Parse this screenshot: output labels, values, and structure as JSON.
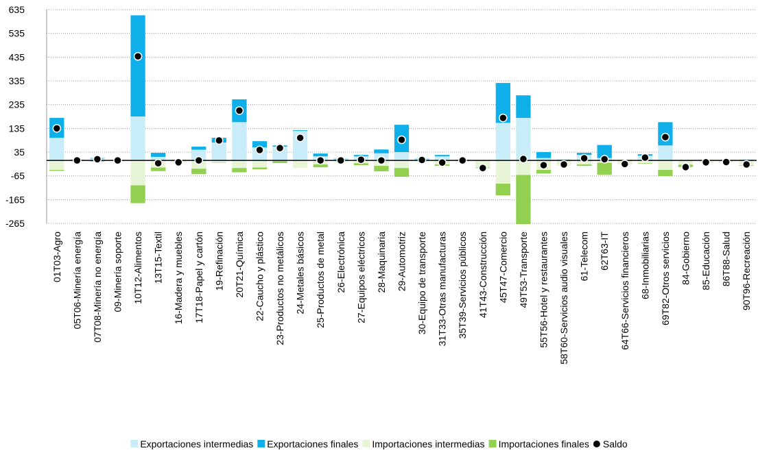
{
  "chart_data": {
    "type": "bar",
    "categories": [
      "01T03-Agro",
      "05T06-Minería energía",
      "07T08-Minería no energía",
      "09-Minería soporte",
      "10T12-Alimentos",
      "13T15-Textil",
      "16-Madera y muebles",
      "17T18-Papel y cartón",
      "19-Refinación",
      "20T21-Química",
      "22-Caucho y plástico",
      "23-Productos no metálicos",
      "24-Metales básicos",
      "25-Productos de metal",
      "26-Electrónica",
      "27-Equipos eléctricos",
      "28-Maquinaria",
      "29-Automotriz",
      "30-Equipo de transporte",
      "31T33-Otras manufacturas",
      "35T39-Servicios públicos",
      "41T43-Construcción",
      "45T47-Comercio",
      "49T53-Transporte",
      "55T56-Hotel y restaurantes",
      "58T60-Servicios audio visuales",
      "61-Telecom",
      "62T63-IT",
      "64T66-Servicios financieros",
      "68-Inmobiliarias",
      "69T82-Otros servicios",
      "84-Gobierno",
      "85-Educación",
      "86T88-Salud",
      "90T96-Recreación"
    ],
    "series": [
      {
        "name": "Exportaciones intermedias",
        "type": "bar",
        "color": "#c9ecf9",
        "values": [
          95,
          5,
          8,
          2,
          185,
          15,
          3,
          45,
          75,
          161,
          55,
          58,
          124,
          17,
          5,
          17,
          30,
          35,
          5,
          17,
          5,
          2,
          158,
          179,
          10,
          5,
          23,
          10,
          3,
          20,
          63,
          2,
          2,
          3,
          5
        ]
      },
      {
        "name": "Exportaciones finales",
        "type": "bar",
        "color": "#0fb0ea",
        "values": [
          84,
          0,
          2,
          0,
          426,
          17,
          0,
          13,
          20,
          96,
          26,
          5,
          3,
          12,
          2,
          6,
          16,
          115,
          2,
          6,
          0,
          0,
          168,
          95,
          25,
          0,
          9,
          55,
          0,
          6,
          98,
          0,
          0,
          0,
          0
        ]
      },
      {
        "name": "Importaciones intermedias",
        "type": "bar",
        "color": "#e8f4d6",
        "values": [
          -40,
          -5,
          -3,
          -2,
          -105,
          -30,
          -8,
          -35,
          -10,
          -32,
          -30,
          -3,
          -32,
          -17,
          -7,
          -12,
          -23,
          -32,
          -5,
          -17,
          -5,
          -30,
          -98,
          -61,
          -40,
          -22,
          -17,
          -10,
          -18,
          -12,
          -40,
          -18,
          -10,
          -10,
          -20
        ]
      },
      {
        "name": "Importaciones finales",
        "type": "bar",
        "color": "#92d050",
        "values": [
          -4,
          0,
          -2,
          0,
          -75,
          -15,
          0,
          -23,
          -1,
          -18,
          -7,
          -8,
          0,
          -12,
          0,
          -8,
          -23,
          -37,
          0,
          -6,
          0,
          -2,
          -49,
          -207,
          -15,
          0,
          -6,
          -50,
          0,
          -2,
          -26,
          -10,
          0,
          0,
          -2
        ]
      },
      {
        "name": "Saldo",
        "type": "scatter",
        "color": "#000000",
        "values": [
          135,
          0,
          5,
          0,
          438,
          -12,
          -8,
          0,
          84,
          210,
          44,
          52,
          95,
          0,
          0,
          3,
          0,
          87,
          2,
          -9,
          0,
          -32,
          179,
          6,
          -20,
          -17,
          9,
          5,
          -15,
          12,
          98,
          -28,
          -8,
          -7,
          -17
        ]
      }
    ],
    "ylim": [
      -265,
      635
    ],
    "yticks": [
      -265,
      -165,
      -65,
      35,
      135,
      235,
      335,
      435,
      535,
      635
    ],
    "grid": true
  }
}
